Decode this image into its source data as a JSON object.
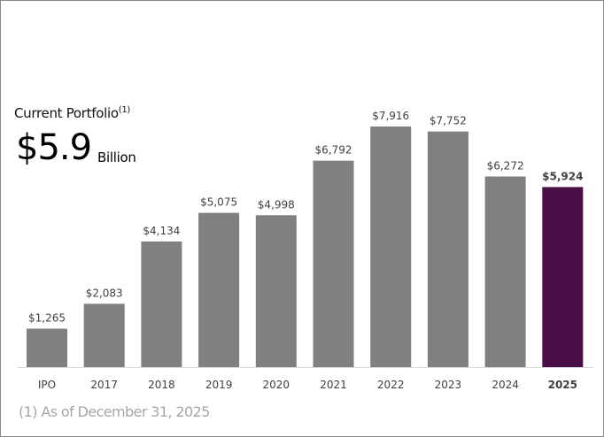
{
  "header": {
    "subtitle": "Current Portfolio",
    "subtitle_note": "(1)",
    "big_value": "$5.9",
    "big_unit": "Billion"
  },
  "footnote": "(1) As of December 31, 2025",
  "colors": {
    "bar": "#808080",
    "highlight": "#4b0f48",
    "axis": "#d9d9d9"
  },
  "chart_data": {
    "type": "bar",
    "title": "Current Portfolio",
    "xlabel": "",
    "ylabel": "",
    "categories": [
      "IPO",
      "2017",
      "2018",
      "2019",
      "2020",
      "2021",
      "2022",
      "2023",
      "2024",
      "2025"
    ],
    "values": [
      1265,
      2083,
      4134,
      5075,
      4998,
      6792,
      7916,
      7752,
      6272,
      5924
    ],
    "data_labels": [
      "$1,265",
      "$2,083",
      "$4,134",
      "$5,075",
      "$4,998",
      "$6,792",
      "$7,916",
      "$7,752",
      "$6,272",
      "$5,924"
    ],
    "highlight_index": 9,
    "ylim": [
      0,
      7916
    ],
    "grid": false
  }
}
